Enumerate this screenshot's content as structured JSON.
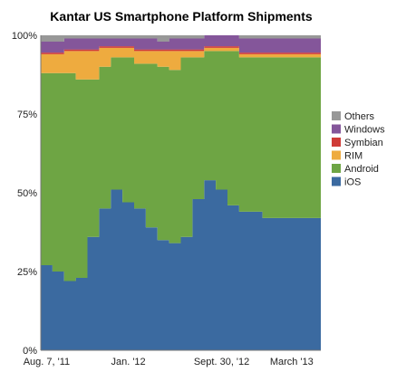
{
  "chart_data": {
    "type": "area",
    "stacked": true,
    "normalized_percent": true,
    "title": "Kantar US Smartphone Platform Shipments",
    "xlabel": "",
    "ylabel": "",
    "ylim": [
      0,
      100
    ],
    "y_ticks": [
      "0%",
      "25%",
      "50%",
      "75%",
      "100%"
    ],
    "x_tick_labels": [
      "Aug. 7, '11",
      "Jan. '12",
      "Sept. 30, '12",
      "March '13"
    ],
    "x_tick_indices": [
      0,
      7,
      15,
      21
    ],
    "legend_position": "right",
    "grid": false,
    "periods": 24,
    "series": [
      {
        "name": "iOS",
        "color": "#3b6aa0",
        "values": [
          27,
          25,
          22,
          23,
          36,
          45,
          51,
          47,
          45,
          39,
          35,
          34,
          36,
          48,
          54,
          51,
          46,
          44,
          44,
          42,
          42,
          42,
          42,
          42
        ]
      },
      {
        "name": "Android",
        "color": "#6ea544",
        "values": [
          61,
          63,
          66,
          63,
          50,
          45,
          42,
          46,
          46,
          52,
          55,
          55,
          57,
          45,
          41,
          44,
          49,
          49,
          49,
          51,
          51,
          51,
          51,
          51
        ]
      },
      {
        "name": "RIM",
        "color": "#eeab3f",
        "values": [
          6,
          6,
          7,
          9,
          9,
          6,
          3,
          3,
          4,
          4,
          5,
          6,
          2,
          2,
          1,
          1,
          1,
          1,
          1,
          1,
          1,
          1,
          1,
          1
        ]
      },
      {
        "name": "Symbian",
        "color": "#cf3b37",
        "values": [
          0.5,
          0.5,
          0.5,
          0.5,
          0.5,
          0.5,
          0.5,
          0.5,
          0.5,
          0.5,
          0.5,
          0.5,
          0.5,
          0.5,
          0.5,
          0.5,
          0.5,
          0.5,
          0.5,
          0.5,
          0.5,
          0.5,
          0.5,
          0.5
        ]
      },
      {
        "name": "Windows",
        "color": "#84569a",
        "values": [
          3.5,
          3.5,
          3.5,
          3.5,
          3.5,
          2.5,
          2.5,
          2.5,
          3.5,
          3.5,
          2.5,
          3.5,
          3.5,
          3.5,
          3.5,
          3.5,
          3.5,
          4.5,
          4.5,
          4.5,
          4.5,
          4.5,
          4.5,
          4.5
        ]
      },
      {
        "name": "Others",
        "color": "#989898",
        "values": [
          2,
          2,
          1,
          1,
          1,
          1,
          1,
          1,
          1,
          1,
          2,
          1,
          1,
          1,
          0,
          0,
          0,
          1,
          1,
          1,
          1,
          1,
          1,
          1
        ]
      }
    ]
  }
}
